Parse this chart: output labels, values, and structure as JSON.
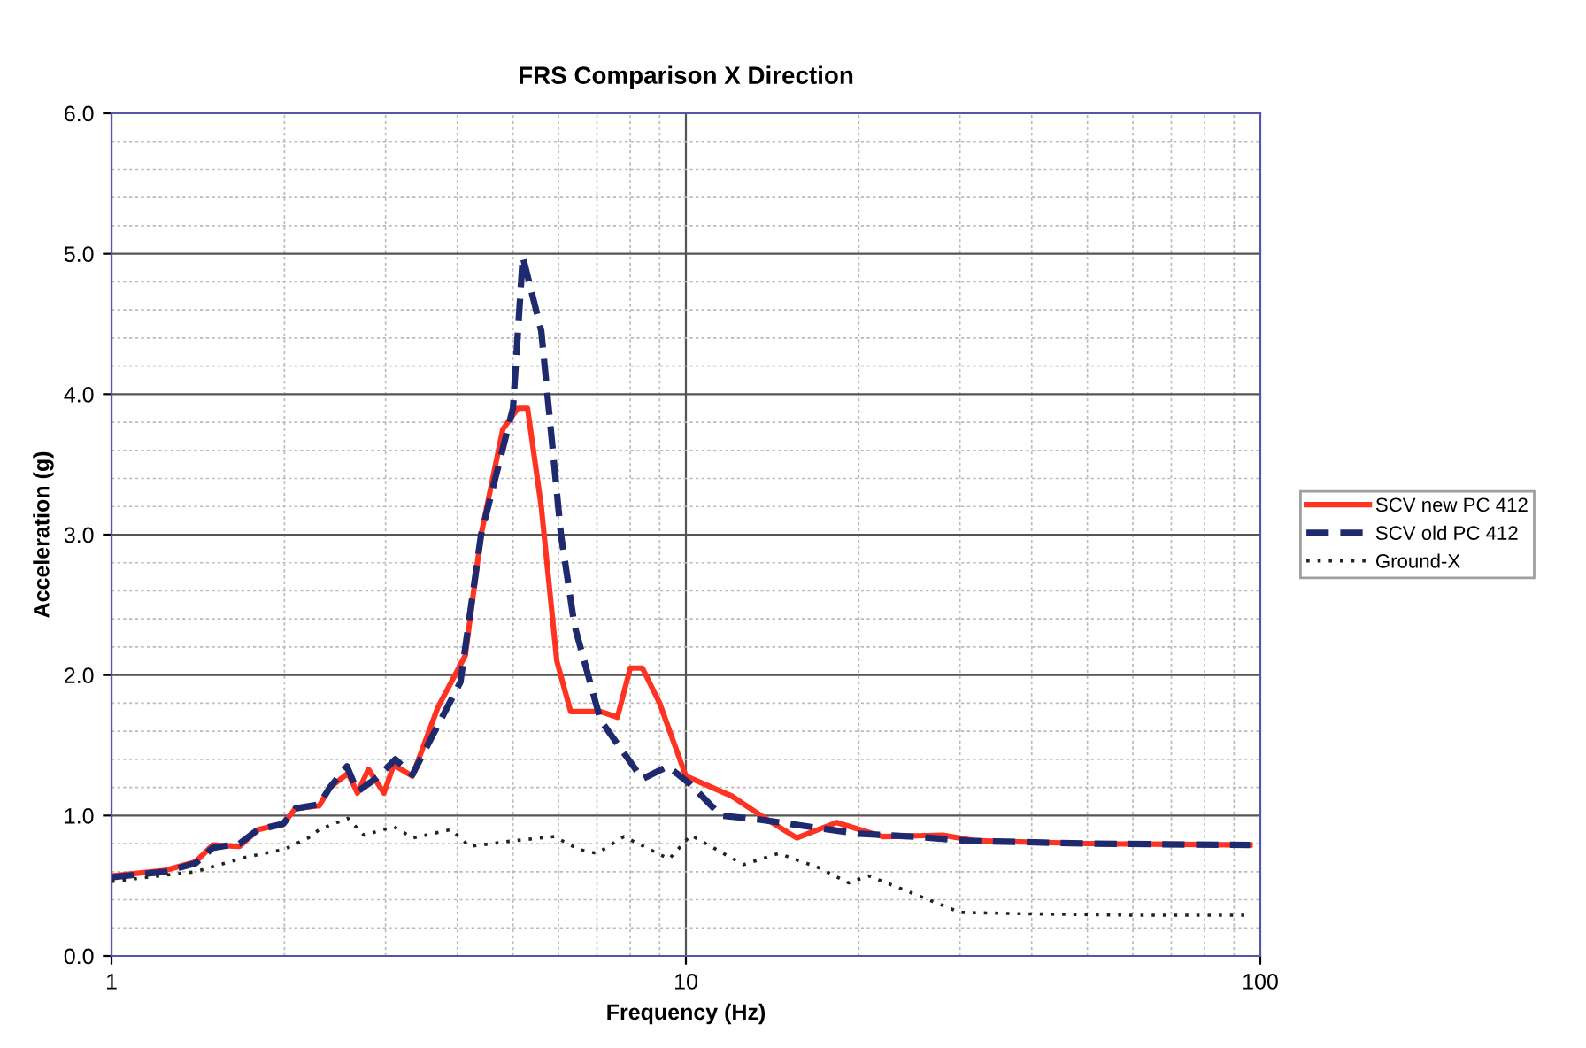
{
  "chart_data": {
    "type": "line",
    "title": "FRS Comparison X Direction",
    "xlabel": "Frequency (Hz)",
    "ylabel": "Acceleration (g)",
    "log": "x",
    "xlim": [
      1,
      100
    ],
    "xticks": [
      1,
      10,
      100
    ],
    "ylim": [
      0,
      6
    ],
    "yticks": [
      {
        "value": 0,
        "label": "0.0"
      },
      {
        "value": 1,
        "label": "1.0"
      },
      {
        "value": 2,
        "label": "2.0"
      },
      {
        "value": 3,
        "label": "3.0"
      },
      {
        "value": 4,
        "label": "4.0"
      },
      {
        "value": 5,
        "label": "5.0"
      },
      {
        "value": 6,
        "label": "6.0"
      }
    ],
    "grid": true,
    "legend": "right",
    "marker": "none",
    "series": [
      {
        "name": "SCV new PC 412",
        "color": "#ff3322",
        "line_style": "solid",
        "x": [
          1,
          1.24,
          1.4,
          1.5,
          1.67,
          1.8,
          1.99,
          2.09,
          2.3,
          2.4,
          2.58,
          2.68,
          2.8,
          2.98,
          3.1,
          3.34,
          3.7,
          4.13,
          4.4,
          4.8,
          5.1,
          5.3,
          5.6,
          5.96,
          6.3,
          7.1,
          7.6,
          8.0,
          8.4,
          9.0,
          10.0,
          12.0,
          13.5,
          15.6,
          18.3,
          22,
          28,
          32,
          50,
          96
        ],
        "values": [
          0.57,
          0.61,
          0.67,
          0.79,
          0.78,
          0.9,
          0.94,
          1.05,
          1.07,
          1.2,
          1.3,
          1.16,
          1.33,
          1.16,
          1.36,
          1.28,
          1.77,
          2.14,
          3.0,
          3.75,
          3.9,
          3.9,
          3.2,
          2.1,
          1.74,
          1.74,
          1.7,
          2.05,
          2.05,
          1.8,
          1.28,
          1.14,
          1.0,
          0.84,
          0.95,
          0.85,
          0.86,
          0.82,
          0.8,
          0.79
        ]
      },
      {
        "name": "SCV old PC 412",
        "color": "#1f2a6e",
        "line_style": "dashed",
        "x": [
          1,
          1.24,
          1.4,
          1.5,
          1.67,
          1.8,
          1.99,
          2.09,
          2.3,
          2.4,
          2.57,
          2.68,
          2.9,
          3.12,
          3.34,
          3.57,
          4.05,
          4.4,
          5.0,
          5.2,
          5.6,
          6.06,
          6.4,
          7.1,
          8.4,
          9.3,
          10.2,
          11.5,
          13.5,
          20,
          25,
          31,
          50,
          96
        ],
        "values": [
          0.56,
          0.6,
          0.66,
          0.77,
          0.8,
          0.9,
          0.94,
          1.05,
          1.08,
          1.2,
          1.35,
          1.17,
          1.27,
          1.4,
          1.29,
          1.52,
          1.95,
          3.0,
          3.9,
          4.98,
          4.45,
          3.0,
          2.35,
          1.68,
          1.26,
          1.35,
          1.22,
          1.0,
          0.97,
          0.87,
          0.85,
          0.82,
          0.8,
          0.79
        ]
      },
      {
        "name": "Ground-X",
        "color": "#222222",
        "line_style": "dotted",
        "x": [
          1,
          1.4,
          1.7,
          2.0,
          2.2,
          2.3,
          2.58,
          2.75,
          3.1,
          3.35,
          3.9,
          4.2,
          5.0,
          5.9,
          6.5,
          7.0,
          7.8,
          9.35,
          10.2,
          12.6,
          14.5,
          17,
          19.2,
          20.8,
          23,
          30,
          39,
          60,
          96
        ],
        "values": [
          0.53,
          0.6,
          0.7,
          0.76,
          0.84,
          0.9,
          0.98,
          0.86,
          0.92,
          0.84,
          0.9,
          0.78,
          0.82,
          0.85,
          0.76,
          0.73,
          0.85,
          0.69,
          0.86,
          0.65,
          0.73,
          0.63,
          0.52,
          0.57,
          0.5,
          0.31,
          0.3,
          0.29,
          0.29
        ]
      }
    ]
  }
}
